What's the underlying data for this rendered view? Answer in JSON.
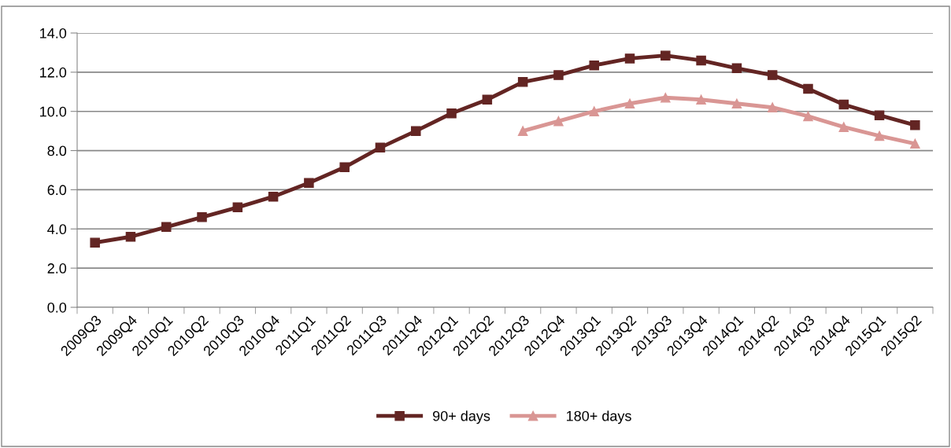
{
  "chart_data": {
    "type": "line",
    "categories": [
      "2009Q3",
      "2009Q4",
      "2010Q1",
      "2010Q2",
      "2010Q3",
      "2010Q4",
      "2011Q1",
      "2011Q2",
      "2011Q3",
      "2011Q4",
      "2012Q1",
      "2012Q2",
      "2012Q3",
      "2012Q4",
      "2013Q1",
      "2013Q2",
      "2013Q3",
      "2013Q4",
      "2014Q1",
      "2014Q2",
      "2014Q3",
      "2014Q4",
      "2015Q1",
      "2015Q2"
    ],
    "series": [
      {
        "name": "90+ days",
        "color": "#632523",
        "marker": "square",
        "values": [
          3.3,
          3.6,
          4.1,
          4.6,
          5.1,
          5.65,
          6.35,
          7.15,
          8.15,
          9.0,
          9.9,
          10.6,
          11.5,
          11.85,
          12.35,
          12.7,
          12.85,
          12.6,
          12.2,
          11.85,
          11.15,
          10.35,
          9.8,
          9.3
        ]
      },
      {
        "name": "180+ days",
        "color": "#d99694",
        "marker": "triangle",
        "values": [
          null,
          null,
          null,
          null,
          null,
          null,
          null,
          null,
          null,
          null,
          null,
          null,
          9.0,
          9.5,
          10.0,
          10.4,
          10.7,
          10.6,
          10.4,
          10.2,
          9.75,
          9.2,
          8.75,
          8.35
        ]
      }
    ],
    "ylim": [
      0,
      14
    ],
    "yticks": [
      {
        "value": 0,
        "label": "0.0"
      },
      {
        "value": 2,
        "label": "2.0"
      },
      {
        "value": 4,
        "label": "4.0"
      },
      {
        "value": 6,
        "label": "6.0"
      },
      {
        "value": 8,
        "label": "8.0"
      },
      {
        "value": 10,
        "label": "10.0"
      },
      {
        "value": 12,
        "label": "12.0"
      },
      {
        "value": 14,
        "label": "14.0"
      }
    ],
    "grid": "y",
    "legend": "bottom",
    "line_style": "solid"
  }
}
